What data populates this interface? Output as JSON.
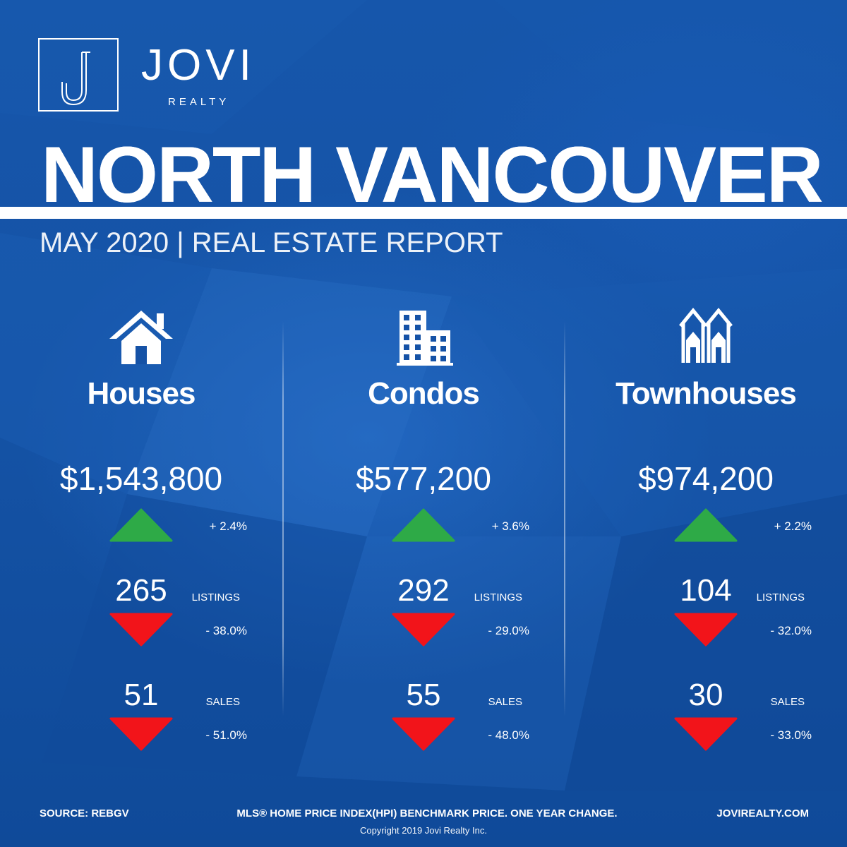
{
  "brand": {
    "monogram": "J",
    "name": "JOVI",
    "sub": "REALTY"
  },
  "header": {
    "title": "NORTH VANCOUVER",
    "subtitle": "MAY 2020 | REAL ESTATE REPORT"
  },
  "colors": {
    "background": "#1552a6",
    "up_arrow": "#2eaa47",
    "down_arrow": "#f2141a",
    "text": "#ffffff"
  },
  "columns": [
    {
      "icon": "house-icon",
      "title": "Houses",
      "price": "$1,543,800",
      "price_change": "+ 2.4%",
      "price_direction": "up",
      "listings": "265",
      "listings_label": "LISTINGS",
      "listings_change": "- 38.0%",
      "listings_direction": "down",
      "sales": "51",
      "sales_label": "SALES",
      "sales_change": "- 51.0%",
      "sales_direction": "down"
    },
    {
      "icon": "condo-building-icon",
      "title": "Condos",
      "price": "$577,200",
      "price_change": "+ 3.6%",
      "price_direction": "up",
      "listings": "292",
      "listings_label": "LISTINGS",
      "listings_change": "- 29.0%",
      "listings_direction": "down",
      "sales": "55",
      "sales_label": "SALES",
      "sales_change": "- 48.0%",
      "sales_direction": "down"
    },
    {
      "icon": "townhouse-icon",
      "title": "Townhouses",
      "price": "$974,200",
      "price_change": "+ 2.2%",
      "price_direction": "up",
      "listings": "104",
      "listings_label": "LISTINGS",
      "listings_change": "- 32.0%",
      "listings_direction": "down",
      "sales": "30",
      "sales_label": "SALES",
      "sales_change": "- 33.0%",
      "sales_direction": "down"
    }
  ],
  "footer": {
    "source": "SOURCE:  REBGV",
    "note": "MLS® HOME PRICE INDEX(HPI) BENCHMARK PRICE. ONE YEAR CHANGE.",
    "website": "JOVIREALTY.COM",
    "copyright": "Copyright 2019 Jovi Realty Inc."
  }
}
